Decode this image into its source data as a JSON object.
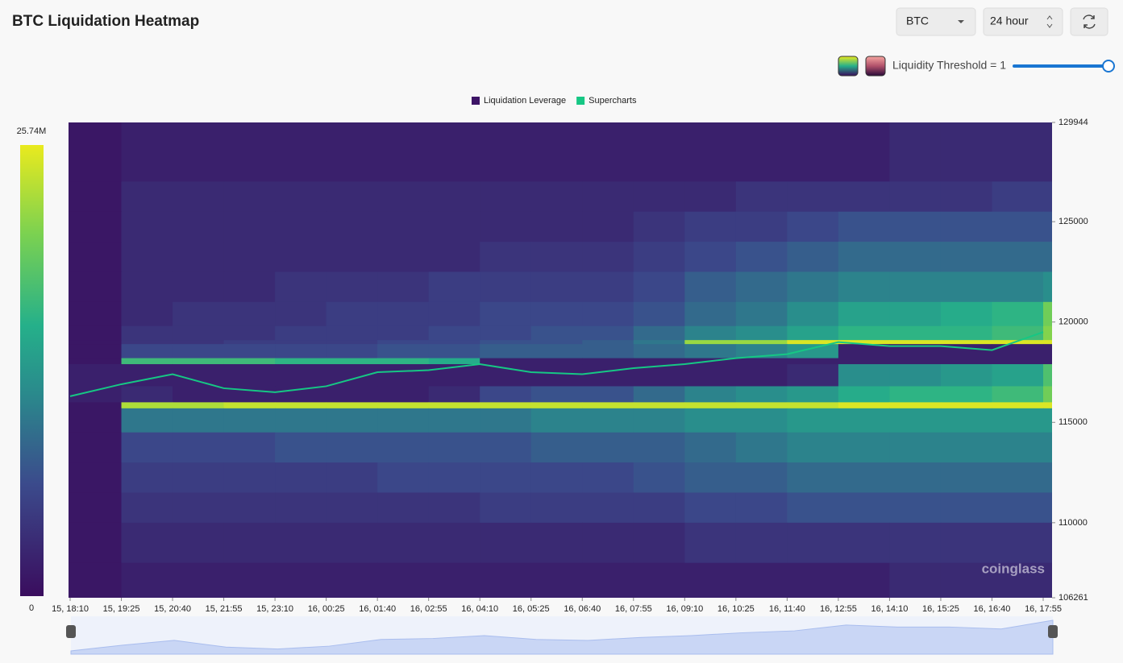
{
  "chart_data": {
    "type": "heatmap",
    "title": "BTC Liquidation Heatmap",
    "categories": [
      "15, 18:10",
      "15, 19:25",
      "15, 20:40",
      "15, 21:55",
      "15, 23:10",
      "16, 00:25",
      "16, 01:40",
      "16, 02:55",
      "16, 04:10",
      "16, 05:25",
      "16, 06:40",
      "16, 07:55",
      "16, 09:10",
      "16, 10:25",
      "16, 11:40",
      "16, 12:55",
      "16, 14:10",
      "16, 15:25",
      "16, 16:40",
      "16, 17:55"
    ],
    "ylim": [
      106261,
      129944
    ],
    "yticks": [
      106261,
      110000,
      115000,
      120000,
      125000,
      129944
    ],
    "zlim": [
      0,
      25.74
    ],
    "zticks": [
      0,
      {
        "value": 25.74,
        "label": "25.74M"
      }
    ],
    "series": [
      {
        "name": "Liquidation Leverage",
        "color": "#3d1466",
        "rows": [
          {
            "from": 127000,
            "to": 129944,
            "values": [
              1,
              2,
              2,
              2,
              2,
              2,
              2,
              2,
              2,
              2,
              2,
              2,
              2,
              2,
              2,
              2,
              3,
              3,
              3,
              3
            ]
          },
          {
            "from": 125500,
            "to": 127000,
            "values": [
              1,
              3,
              3,
              3,
              3,
              3,
              3,
              3,
              3,
              3,
              3,
              3,
              3,
              4,
              4,
              4,
              4,
              4,
              5,
              5
            ]
          },
          {
            "from": 124000,
            "to": 125500,
            "values": [
              1,
              3,
              3,
              3,
              3,
              3,
              3,
              3,
              3,
              3,
              3,
              4,
              5,
              5,
              6,
              7,
              7,
              7,
              7,
              7
            ]
          },
          {
            "from": 122500,
            "to": 124000,
            "values": [
              1,
              3,
              3,
              3,
              3,
              3,
              3,
              3,
              4,
              4,
              4,
              5,
              6,
              7,
              8,
              9,
              9,
              9,
              9,
              9
            ]
          },
          {
            "from": 121000,
            "to": 122500,
            "values": [
              1,
              3,
              3,
              3,
              4,
              4,
              4,
              5,
              5,
              5,
              5,
              6,
              8,
              9,
              10,
              11,
              11,
              11,
              11,
              12
            ]
          },
          {
            "from": 119800,
            "to": 121000,
            "values": [
              1,
              3,
              4,
              4,
              4,
              5,
              5,
              5,
              6,
              6,
              6,
              7,
              9,
              10,
              12,
              14,
              14,
              15,
              16,
              20
            ]
          },
          {
            "from": 119100,
            "to": 119800,
            "values": [
              1,
              4,
              4,
              4,
              5,
              5,
              5,
              6,
              6,
              7,
              7,
              9,
              11,
              12,
              14,
              16,
              16,
              16,
              17,
              21
            ]
          },
          {
            "from": 118900,
            "to": 119100,
            "values": [
              1,
              4,
              4,
              5,
              5,
              5,
              6,
              6,
              7,
              7,
              8,
              10,
              22,
              22,
              25,
              25,
              25,
              25,
              25,
              25
            ]
          },
          {
            "from": 118200,
            "to": 118900,
            "values": [
              1,
              6,
              6,
              6,
              6,
              6,
              7,
              7,
              8,
              8,
              8,
              9,
              10,
              11,
              13,
              2,
              2,
              2,
              2,
              2
            ]
          },
          {
            "from": 117900,
            "to": 118200,
            "values": [
              1,
              17,
              17,
              17,
              16,
              16,
              16,
              15,
              2,
              2,
              2,
              2,
              2,
              2,
              2,
              2,
              2,
              2,
              2,
              2
            ]
          },
          {
            "from": 116800,
            "to": 117900,
            "values": [
              2,
              2,
              2,
              2,
              2,
              2,
              2,
              2,
              2,
              2,
              2,
              2,
              2,
              2,
              3,
              12,
              12,
              13,
              14,
              18
            ]
          },
          {
            "from": 116000,
            "to": 116800,
            "values": [
              2,
              3,
              2,
              2,
              2,
              2,
              2,
              3,
              6,
              7,
              7,
              9,
              11,
              12,
              13,
              15,
              16,
              16,
              17,
              20
            ]
          },
          {
            "from": 115700,
            "to": 116000,
            "values": [
              1,
              23,
              23,
              24,
              24,
              24,
              24,
              24,
              24,
              24,
              24,
              24,
              24,
              24,
              24,
              25,
              25,
              25,
              25,
              25
            ]
          },
          {
            "from": 114500,
            "to": 115700,
            "values": [
              1,
              10,
              10,
              10,
              10,
              10,
              10,
              10,
              10,
              11,
              11,
              11,
              12,
              12,
              13,
              13,
              13,
              13,
              13,
              13
            ]
          },
          {
            "from": 113000,
            "to": 114500,
            "values": [
              1,
              6,
              6,
              6,
              7,
              7,
              7,
              7,
              7,
              8,
              8,
              8,
              9,
              10,
              11,
              11,
              11,
              11,
              11,
              11
            ]
          },
          {
            "from": 111500,
            "to": 113000,
            "values": [
              1,
              5,
              5,
              5,
              5,
              5,
              6,
              6,
              6,
              6,
              6,
              7,
              8,
              8,
              9,
              9,
              9,
              9,
              9,
              9
            ]
          },
          {
            "from": 110000,
            "to": 111500,
            "values": [
              1,
              4,
              4,
              4,
              4,
              4,
              4,
              4,
              5,
              5,
              5,
              5,
              6,
              6,
              7,
              7,
              7,
              7,
              7,
              7
            ]
          },
          {
            "from": 108000,
            "to": 110000,
            "values": [
              1,
              3,
              3,
              3,
              3,
              3,
              3,
              3,
              3,
              3,
              3,
              3,
              4,
              4,
              4,
              4,
              4,
              4,
              4,
              4
            ]
          },
          {
            "from": 106261,
            "to": 108000,
            "values": [
              1,
              2,
              2,
              2,
              2,
              2,
              2,
              2,
              2,
              2,
              2,
              2,
              2,
              2,
              2,
              2,
              3,
              3,
              3,
              3
            ]
          }
        ]
      },
      {
        "name": "Supercharts",
        "color": "#16c784",
        "values": [
          116300,
          116900,
          117400,
          116700,
          116500,
          116800,
          117500,
          117600,
          117900,
          117500,
          117400,
          117700,
          117900,
          118200,
          118400,
          119000,
          118800,
          118800,
          118600,
          119500
        ]
      }
    ]
  },
  "controls": {
    "symbol": "BTC",
    "range": "24 hour",
    "threshold_label": "Liquidity Threshold = 1"
  },
  "watermark": "coinglass"
}
